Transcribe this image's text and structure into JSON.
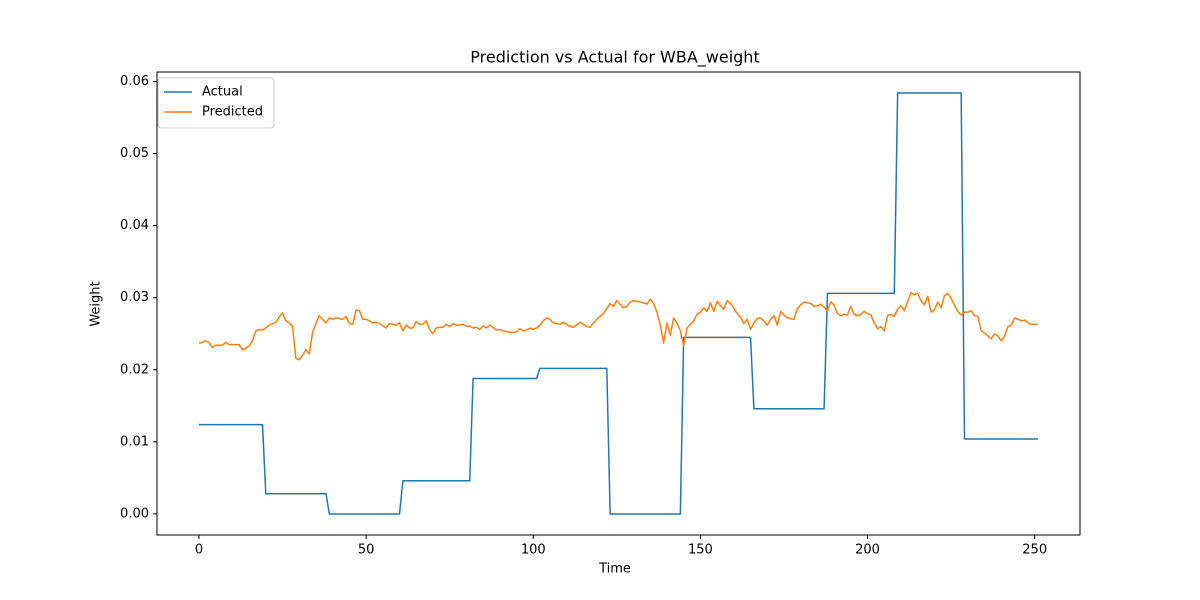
{
  "chart_data": {
    "type": "line",
    "title": "Prediction vs Actual for WBA_weight",
    "x_label": "Time",
    "y_label": "Weight",
    "x": [
      0,
      1,
      2,
      3,
      4,
      5,
      6,
      7,
      8,
      9,
      10,
      11,
      12,
      13,
      14,
      15,
      16,
      17,
      18,
      19,
      20,
      21,
      22,
      23,
      24,
      25,
      26,
      27,
      28,
      29,
      30,
      31,
      32,
      33,
      34,
      35,
      36,
      37,
      38,
      39,
      40,
      41,
      42,
      43,
      44,
      45,
      46,
      47,
      48,
      49,
      50,
      51,
      52,
      53,
      54,
      55,
      56,
      57,
      58,
      59,
      60,
      61,
      62,
      63,
      64,
      65,
      66,
      67,
      68,
      69,
      70,
      71,
      72,
      73,
      74,
      75,
      76,
      77,
      78,
      79,
      80,
      81,
      82,
      83,
      84,
      85,
      86,
      87,
      88,
      89,
      90,
      91,
      92,
      93,
      94,
      95,
      96,
      97,
      98,
      99,
      100,
      101,
      102,
      103,
      104,
      105,
      106,
      107,
      108,
      109,
      110,
      111,
      112,
      113,
      114,
      115,
      116,
      117,
      118,
      119,
      120,
      121,
      122,
      123,
      124,
      125,
      126,
      127,
      128,
      129,
      130,
      131,
      132,
      133,
      134,
      135,
      136,
      137,
      138,
      139,
      140,
      141,
      142,
      143,
      144,
      145,
      146,
      147,
      148,
      149,
      150,
      151,
      152,
      153,
      154,
      155,
      156,
      157,
      158,
      159,
      160,
      161,
      162,
      163,
      164,
      165,
      166,
      167,
      168,
      169,
      170,
      171,
      172,
      173,
      174,
      175,
      176,
      177,
      178,
      179,
      180,
      181,
      182,
      183,
      184,
      185,
      186,
      187,
      188,
      189,
      190,
      191,
      192,
      193,
      194,
      195,
      196,
      197,
      198,
      199,
      200,
      201,
      202,
      203,
      204,
      205,
      206,
      207,
      208,
      209,
      210,
      211,
      212,
      213,
      214,
      215,
      216,
      217,
      218,
      219,
      220,
      221,
      222,
      223,
      224,
      225,
      226,
      227,
      228,
      229,
      230,
      231,
      232,
      233,
      234,
      235,
      236,
      237,
      238,
      239,
      240,
      241,
      242,
      243,
      244,
      245,
      246,
      247,
      248,
      249,
      250,
      251
    ],
    "series": [
      {
        "name": "Actual",
        "color": "#1f77b4",
        "values": [
          0.0124,
          0.0124,
          0.0124,
          0.0124,
          0.0124,
          0.0124,
          0.0124,
          0.0124,
          0.0124,
          0.0124,
          0.0124,
          0.0124,
          0.0124,
          0.0124,
          0.0124,
          0.0124,
          0.0124,
          0.0124,
          0.0124,
          0.0124,
          0.0028,
          0.0028,
          0.0028,
          0.0028,
          0.0028,
          0.0028,
          0.0028,
          0.0028,
          0.0028,
          0.0028,
          0.0028,
          0.0028,
          0.0028,
          0.0028,
          0.0028,
          0.0028,
          0.0028,
          0.0028,
          0.0028,
          0,
          0,
          0,
          0,
          0,
          0,
          0,
          0,
          0,
          0,
          0,
          0,
          0,
          0,
          0,
          0,
          0,
          0,
          0,
          0,
          0,
          0,
          0.0046,
          0.0046,
          0.0046,
          0.0046,
          0.0046,
          0.0046,
          0.0046,
          0.0046,
          0.0046,
          0.0046,
          0.0046,
          0.0046,
          0.0046,
          0.0046,
          0.0046,
          0.0046,
          0.0046,
          0.0046,
          0.0046,
          0.0046,
          0.0046,
          0.0188,
          0.0188,
          0.0188,
          0.0188,
          0.0188,
          0.0188,
          0.0188,
          0.0188,
          0.0188,
          0.0188,
          0.0188,
          0.0188,
          0.0188,
          0.0188,
          0.0188,
          0.0188,
          0.0188,
          0.0188,
          0.0188,
          0.0188,
          0.0202,
          0.0202,
          0.0202,
          0.0202,
          0.0202,
          0.0202,
          0.0202,
          0.0202,
          0.0202,
          0.0202,
          0.0202,
          0.0202,
          0.0202,
          0.0202,
          0.0202,
          0.0202,
          0.0202,
          0.0202,
          0.0202,
          0.0202,
          0.0202,
          0,
          0,
          0,
          0,
          0,
          0,
          0,
          0,
          0,
          0,
          0,
          0,
          0,
          0,
          0,
          0,
          0,
          0,
          0,
          0,
          0,
          0,
          0.0245,
          0.0245,
          0.0245,
          0.0245,
          0.0245,
          0.0245,
          0.0245,
          0.0245,
          0.0245,
          0.0245,
          0.0245,
          0.0245,
          0.0245,
          0.0245,
          0.0245,
          0.0245,
          0.0245,
          0.0245,
          0.0245,
          0.0245,
          0.0245,
          0.0146,
          0.0146,
          0.0146,
          0.0146,
          0.0146,
          0.0146,
          0.0146,
          0.0146,
          0.0146,
          0.0146,
          0.0146,
          0.0146,
          0.0146,
          0.0146,
          0.0146,
          0.0146,
          0.0146,
          0.0146,
          0.0146,
          0.0146,
          0.0146,
          0.0146,
          0.0306,
          0.0306,
          0.0306,
          0.0306,
          0.0306,
          0.0306,
          0.0306,
          0.0306,
          0.0306,
          0.0306,
          0.0306,
          0.0306,
          0.0306,
          0.0306,
          0.0306,
          0.0306,
          0.0306,
          0.0306,
          0.0306,
          0.0306,
          0.0306,
          0.0584,
          0.0584,
          0.0584,
          0.0584,
          0.0584,
          0.0584,
          0.0584,
          0.0584,
          0.0584,
          0.0584,
          0.0584,
          0.0584,
          0.0584,
          0.0584,
          0.0584,
          0.0584,
          0.0584,
          0.0584,
          0.0584,
          0.0584,
          0.0104,
          0.0104,
          0.0104,
          0.0104,
          0.0104,
          0.0104,
          0.0104,
          0.0104,
          0.0104,
          0.0104,
          0.0104,
          0.0104,
          0.0104,
          0.0104,
          0.0104,
          0.0104,
          0.0104,
          0.0104,
          0.0104,
          0.0104,
          0.0104,
          0.0104,
          0.0104
        ]
      },
      {
        "name": "Predicted",
        "color": "#ff7f0e",
        "values": [
          0.0237,
          0.0238,
          0.024,
          0.0238,
          0.0231,
          0.0234,
          0.0234,
          0.0234,
          0.0238,
          0.0235,
          0.0235,
          0.0235,
          0.0235,
          0.0228,
          0.023,
          0.0233,
          0.024,
          0.0254,
          0.0256,
          0.0255,
          0.0258,
          0.0262,
          0.0264,
          0.0266,
          0.0273,
          0.0279,
          0.0268,
          0.0265,
          0.026,
          0.0216,
          0.0214,
          0.022,
          0.0228,
          0.0222,
          0.0252,
          0.0264,
          0.0275,
          0.027,
          0.0265,
          0.0272,
          0.027,
          0.0272,
          0.0271,
          0.027,
          0.0274,
          0.0264,
          0.0263,
          0.0283,
          0.0282,
          0.027,
          0.027,
          0.0268,
          0.0265,
          0.0266,
          0.0264,
          0.0261,
          0.0258,
          0.0264,
          0.0263,
          0.0262,
          0.0265,
          0.0254,
          0.0262,
          0.0258,
          0.0258,
          0.0267,
          0.0263,
          0.0263,
          0.0268,
          0.0256,
          0.025,
          0.0258,
          0.0259,
          0.0259,
          0.0263,
          0.026,
          0.0264,
          0.0262,
          0.0262,
          0.0263,
          0.026,
          0.0261,
          0.0258,
          0.0259,
          0.0256,
          0.0261,
          0.0258,
          0.0262,
          0.0259,
          0.0255,
          0.0256,
          0.0254,
          0.0253,
          0.0252,
          0.0252,
          0.0253,
          0.0257,
          0.0254,
          0.0255,
          0.0258,
          0.0256,
          0.0258,
          0.0262,
          0.0268,
          0.0272,
          0.027,
          0.0265,
          0.0264,
          0.0263,
          0.0266,
          0.0263,
          0.026,
          0.0259,
          0.0262,
          0.0266,
          0.0263,
          0.026,
          0.0259,
          0.0265,
          0.027,
          0.0274,
          0.0278,
          0.0285,
          0.0292,
          0.0288,
          0.0296,
          0.0291,
          0.0286,
          0.0288,
          0.0294,
          0.0296,
          0.0295,
          0.0294,
          0.0293,
          0.0291,
          0.0298,
          0.0292,
          0.028,
          0.0262,
          0.0237,
          0.0265,
          0.0248,
          0.0272,
          0.0265,
          0.0254,
          0.0233,
          0.0258,
          0.0263,
          0.0268,
          0.0277,
          0.028,
          0.0286,
          0.0281,
          0.0293,
          0.0281,
          0.0295,
          0.0289,
          0.0284,
          0.0296,
          0.0292,
          0.0286,
          0.0278,
          0.0273,
          0.0264,
          0.027,
          0.0256,
          0.0265,
          0.0271,
          0.0272,
          0.0268,
          0.0262,
          0.027,
          0.0275,
          0.0262,
          0.0281,
          0.0276,
          0.0272,
          0.0271,
          0.027,
          0.0285,
          0.029,
          0.0294,
          0.0293,
          0.0292,
          0.0288,
          0.0289,
          0.0291,
          0.0287,
          0.0282,
          0.0294,
          0.029,
          0.0278,
          0.0275,
          0.0277,
          0.0276,
          0.0288,
          0.0277,
          0.0275,
          0.0277,
          0.0281,
          0.0278,
          0.0276,
          0.0265,
          0.0257,
          0.026,
          0.0254,
          0.0275,
          0.0277,
          0.0274,
          0.0284,
          0.0289,
          0.0282,
          0.0295,
          0.0307,
          0.0304,
          0.0306,
          0.0296,
          0.029,
          0.0302,
          0.028,
          0.0283,
          0.0294,
          0.0286,
          0.0303,
          0.0306,
          0.0299,
          0.029,
          0.0281,
          0.0276,
          0.028,
          0.028,
          0.0282,
          0.0275,
          0.0274,
          0.0254,
          0.0251,
          0.0247,
          0.0243,
          0.025,
          0.0247,
          0.024,
          0.0247,
          0.026,
          0.0262,
          0.0272,
          0.027,
          0.0268,
          0.0269,
          0.0265,
          0.0263,
          0.0263,
          0.0263
        ]
      }
    ],
    "xlim": [
      -12.55,
      263.55
    ],
    "xticks": [
      0,
      50,
      100,
      150,
      200,
      250
    ],
    "ylim": [
      -0.00292,
      0.06132
    ],
    "yticks": [
      {
        "value": 0,
        "label": "0.00"
      },
      {
        "value": 0.01,
        "label": "0.01"
      },
      {
        "value": 0.02,
        "label": "0.02"
      },
      {
        "value": 0.03,
        "label": "0.03"
      },
      {
        "value": 0.04,
        "label": "0.04"
      },
      {
        "value": 0.05,
        "label": "0.05"
      },
      {
        "value": 0.06,
        "label": "0.06"
      }
    ],
    "grid": false,
    "legend": "upper left"
  }
}
